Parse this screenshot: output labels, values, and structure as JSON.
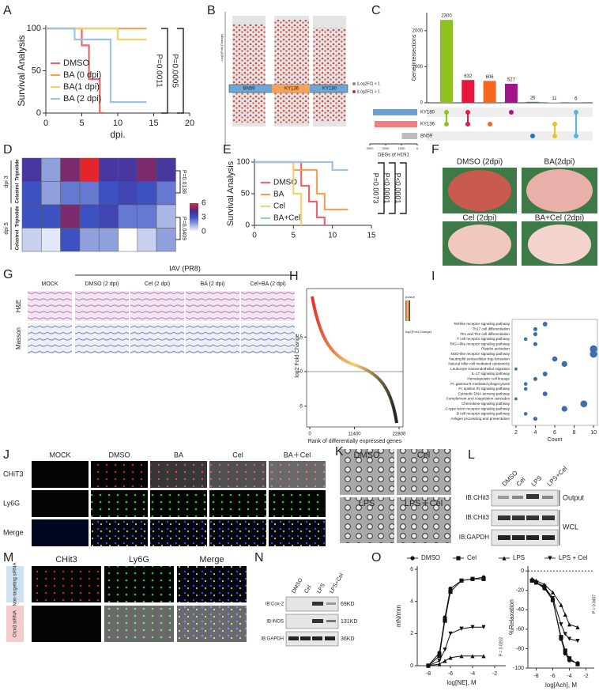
{
  "panels": {
    "A": {
      "label": "A",
      "chart_data": {
        "type": "survival",
        "ylabel": "Survival Analysis",
        "xlabel": "dpi.",
        "xlim": [
          0,
          20
        ],
        "ylim": [
          0,
          100
        ],
        "xticks": [
          0,
          5,
          10,
          15,
          20
        ],
        "yticks": [
          0,
          50,
          100
        ],
        "series": [
          {
            "name": "DMSO",
            "color": "#e8676a",
            "x": [
              0,
              5,
              5,
              6,
              6,
              7.5,
              7.5,
              8
            ],
            "values": [
              100,
              100,
              80,
              80,
              40,
              40,
              0,
              0
            ]
          },
          {
            "name": "BA (0 dpi)",
            "color": "#f4a259",
            "x": [
              0,
              14
            ],
            "values": [
              100,
              100
            ]
          },
          {
            "name": "BA(1 dpi)",
            "color": "#f1d36e",
            "x": [
              0,
              10,
              10,
              14
            ],
            "values": [
              100,
              100,
              87,
              87
            ]
          },
          {
            "name": "BA (2 dpi)",
            "color": "#9ec4e5",
            "x": [
              0,
              4,
              4,
              9,
              9,
              14
            ],
            "values": [
              100,
              100,
              87,
              87,
              13,
              13
            ]
          }
        ],
        "annotations": [
          "P=0.0011",
          "P=0.0005"
        ]
      }
    },
    "B": {
      "label": "B",
      "ylabel": "Log2(Fold Change)",
      "groups": [
        "BN59",
        "KY136",
        "KY180"
      ],
      "legend": [
        "|Log2FC| < 1",
        "|Log2FC| > 1"
      ]
    },
    "C": {
      "label": "C",
      "chart_data": {
        "type": "upset",
        "ylabel": "Gene Intersections",
        "values": [
          2300,
          632,
          606,
          527,
          26,
          11,
          6
        ],
        "colors": [
          "#8dc21f",
          "#e8163e",
          "#f5671f",
          "#a0148c",
          "#1f77c4",
          "#e6c22b",
          "#5ab4e0"
        ],
        "ylim": [
          0,
          2500
        ],
        "yticks": [
          0,
          1000,
          2000
        ],
        "sets": [
          "KY180",
          "KY136",
          "BN59"
        ],
        "set_sizes": [
          2800,
          2700,
          978
        ],
        "set_colors": [
          "#6fa0d0",
          "#f08080",
          "#bdbdbd"
        ],
        "set_xlabel": "DEGs of H1N1",
        "set_xlim": [
          3000,
          0
        ],
        "set_ticks": [
          3000,
          2000,
          1000,
          0
        ]
      }
    },
    "D": {
      "label": "D",
      "chart_data": {
        "type": "heatmap",
        "values": [
          [
            4,
            2,
            5,
            6,
            4,
            4,
            5,
            4
          ],
          [
            3,
            2,
            2.5,
            2.5,
            3,
            3.5,
            3,
            2.5
          ],
          [
            3,
            3,
            5,
            3,
            3.5,
            2.5,
            2.5,
            1.5
          ],
          [
            1,
            0.5,
            3,
            2,
            2,
            0,
            1,
            2
          ]
        ],
        "row_labels": [
          "Triptolide",
          "Celastrol",
          "Triptolide",
          "Celastrol"
        ],
        "groups": [
          "dpi 3",
          "dpi 5"
        ],
        "annotations": [
          "P=0.0138",
          "P=0.0409"
        ],
        "clim": [
          0,
          6
        ],
        "colorbar_ticks": [
          0,
          3,
          6
        ]
      }
    },
    "E": {
      "label": "E",
      "chart_data": {
        "type": "survival",
        "ylabel": "Survival Analysis",
        "xlim": [
          0,
          15
        ],
        "ylim": [
          0,
          100
        ],
        "xticks": [
          0,
          5,
          10,
          15
        ],
        "yticks": [
          0,
          50,
          100
        ],
        "series": [
          {
            "name": "DMSO",
            "color": "#e8676a",
            "x": [
              0,
              6,
              6,
              7,
              7,
              8,
              8,
              9,
              9
            ],
            "values": [
              100,
              100,
              62.5,
              62.5,
              37.5,
              37.5,
              12.5,
              12.5,
              0
            ]
          },
          {
            "name": "BA",
            "color": "#f4a259",
            "x": [
              0,
              5,
              5,
              8,
              8,
              9,
              9,
              12
            ],
            "values": [
              100,
              100,
              87.5,
              87.5,
              50,
              50,
              25,
              25
            ]
          },
          {
            "name": "Cel",
            "color": "#f1d36e",
            "x": [
              0,
              5,
              5,
              6,
              6
            ],
            "values": [
              100,
              100,
              50,
              50,
              0
            ]
          },
          {
            "name": "BA+Cel",
            "color": "#9ec4e5",
            "x": [
              0,
              10,
              10,
              12
            ],
            "values": [
              100,
              100,
              87.5,
              87.5
            ]
          }
        ],
        "annotations": [
          "P=0.0073",
          "P<0.0001",
          "P<0.0001"
        ]
      }
    },
    "F": {
      "label": "F",
      "images": [
        "DMSO (2dpi)",
        "BA(2dpi)",
        "Cel (2dpi)",
        "BA+Cel (2dpi)"
      ]
    },
    "G": {
      "label": "G",
      "group": "IAV (PR8)",
      "columns": [
        "MOCK",
        "DMSO (2 dpi)",
        "Cel (2 dpi)",
        "BA (2 dpi)",
        "Cel+BA (2 dpi)"
      ],
      "rows": [
        "H&E",
        "Masson"
      ]
    },
    "H": {
      "label": "H",
      "chart_data": {
        "type": "rank",
        "xlabel": "Rank of differentially expressed genes",
        "ylabel": "log2 Fold Change",
        "xlim": [
          0,
          22800
        ],
        "ylim": [
          -8,
          12
        ],
        "xticks": [
          0,
          11400,
          22800
        ],
        "yticks": [
          5,
          0,
          -5
        ],
        "legend": [
          "pvalue",
          "log2(Fold Change)"
        ]
      }
    },
    "I": {
      "label": "I",
      "chart_data": {
        "type": "dot",
        "xlabel": "Count",
        "color": "#3d6fb0",
        "xlim": [
          1.6,
          10.4
        ],
        "xticks": [
          2,
          4,
          6,
          8,
          10
        ],
        "categories": [
          "Toll-like receptor signaling pathway",
          "Th17 cell differentiation",
          "Th1 and Th2 cell differentiation",
          "T cell receptor signaling pathway",
          "RIG-I-like receptor signaling pathway",
          "Platelet activation",
          "NOD-like receptor signaling pathway",
          "Neutrophil extracellular trap formation",
          "Natural killer cell mediated cytotoxicity",
          "Leukocyte transendothelial migration",
          "IL-17 signaling pathway",
          "Hematopoietic cell lineage",
          "Fc gamma R-mediated phagocytosis",
          "Fc epsilon RI signaling pathway",
          "Cytosolic DNA-sensing pathway",
          "Complement and coagulation cascades",
          "Chemokine signaling pathway",
          "C-type lectin receptor signaling pathway",
          "B cell receptor signaling pathway",
          "Antigen processing and presentation"
        ],
        "values": [
          5,
          4,
          4,
          3,
          4,
          10,
          10,
          6,
          7,
          2,
          5,
          4,
          3,
          3,
          5,
          2,
          9,
          7,
          3,
          4
        ]
      }
    },
    "J": {
      "label": "J",
      "columns": [
        "MOCK",
        "DMSO",
        "BA",
        "Cel",
        "BA＋Cel"
      ],
      "rows": [
        "CHiT3",
        "Ly6G",
        "Merge"
      ]
    },
    "K": {
      "label": "K",
      "images": [
        "DMSO",
        "Cel",
        "LPS",
        "LPS＋Cel"
      ]
    },
    "L": {
      "label": "L",
      "lanes": [
        "DMSO",
        "Cel",
        "LPS",
        "LPS+Cel"
      ],
      "blots": [
        "IB:CHit3",
        "IB:CHit3",
        "IB:GAPDH"
      ],
      "groups": [
        "Output",
        "WCL"
      ]
    },
    "M": {
      "label": "M",
      "columns": [
        "CHit3",
        "Ly6G",
        "Merge"
      ],
      "rows": [
        "Non-targeting siRNA",
        "Clcn3 siRNA"
      ]
    },
    "N": {
      "label": "N",
      "lanes": [
        "DMSO",
        "Cel",
        "LPS",
        "LPS+Cel"
      ],
      "blots": [
        "IB:Cox-2",
        "IB:iNOS",
        "IB:GAPDH"
      ],
      "sizes": [
        "69KD",
        "131KD",
        "36KD"
      ]
    },
    "O": {
      "label": "O",
      "charts": [
        {
          "type": "dose",
          "ylabel": "mN/mm",
          "xlabel": "log[NE], M",
          "xlim": [
            -9,
            -1
          ],
          "ylim": [
            0,
            6.2
          ],
          "xticks": [
            -8,
            -6,
            -4,
            -2
          ],
          "yticks": [
            0,
            2,
            4,
            6
          ],
          "annotation": "P = 0.0202",
          "series": [
            {
              "name": "DMSO",
              "marker": "circle",
              "x": [
                -8,
                -7,
                -6.5,
                -6,
                -5,
                -4,
                -3
              ],
              "values": [
                0,
                0.8,
                3,
                4.8,
                5.3,
                5.4,
                5.5
              ]
            },
            {
              "name": "Cel",
              "marker": "square",
              "x": [
                -8,
                -7,
                -6.5,
                -6,
                -5,
                -4,
                -3
              ],
              "values": [
                0,
                0.6,
                2.8,
                4.6,
                5.3,
                5.4,
                5.4
              ]
            },
            {
              "name": "LPS",
              "marker": "triangle",
              "x": [
                -8,
                -7,
                -6.5,
                -6,
                -5,
                -4,
                -3
              ],
              "values": [
                0,
                0.1,
                0.3,
                0.5,
                0.6,
                0.6,
                0.6
              ]
            },
            {
              "name": "LPS + Cel",
              "marker": "triangle-down",
              "x": [
                -8,
                -7,
                -6.5,
                -6,
                -5,
                -4,
                -3
              ],
              "values": [
                0,
                0.3,
                1,
                2,
                2.3,
                2.4,
                2.4
              ]
            }
          ]
        },
        {
          "type": "dose",
          "ylabel": "%Relaxation",
          "xlabel": "log[Ach], M",
          "xlim": [
            -9,
            -1
          ],
          "ylim": [
            -100,
            5
          ],
          "xticks": [
            -8,
            -6,
            -4,
            -2
          ],
          "yticks": [
            0,
            -20,
            -40,
            -60,
            -80,
            -100
          ],
          "reference_line": 0,
          "annotation": "P = 0.0457",
          "series": [
            {
              "name": "DMSO",
              "marker": "circle",
              "x": [
                -8.5,
                -8,
                -7,
                -6,
                -5,
                -4.5,
                -4,
                -3
              ],
              "values": [
                -10,
                -12,
                -18,
                -30,
                -70,
                -85,
                -92,
                -95
              ]
            },
            {
              "name": "Cel",
              "marker": "square",
              "x": [
                -8.5,
                -8,
                -7,
                -6,
                -5,
                -4.5,
                -4,
                -3
              ],
              "values": [
                -10,
                -12,
                -17,
                -30,
                -68,
                -82,
                -90,
                -96
              ]
            },
            {
              "name": "LPS",
              "marker": "triangle",
              "x": [
                -8.5,
                -8,
                -7,
                -6,
                -5,
                -4.5,
                -4,
                -3
              ],
              "values": [
                -8,
                -10,
                -14,
                -22,
                -35,
                -45,
                -55,
                -58
              ]
            },
            {
              "name": "LPS + Cel",
              "marker": "triangle-down",
              "x": [
                -8.5,
                -8,
                -7,
                -6,
                -5,
                -4.5,
                -4,
                -3
              ],
              "values": [
                -10,
                -12,
                -16,
                -28,
                -55,
                -65,
                -70,
                -72
              ]
            }
          ]
        }
      ]
    }
  }
}
